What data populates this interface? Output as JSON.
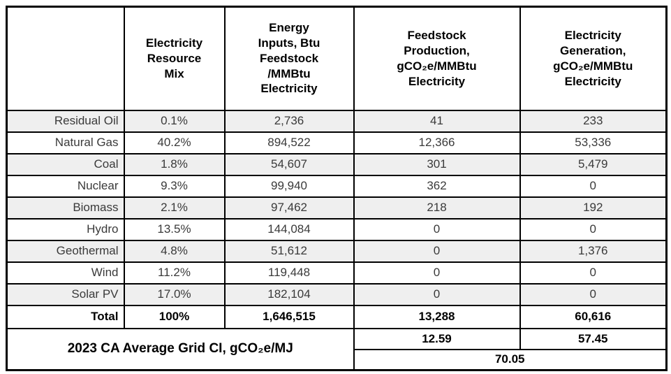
{
  "table": {
    "title_semantic": "2023 California average grid carbon intensity table",
    "columns": {
      "resource": "",
      "mix": "Electricity\nResource\nMix",
      "energy_inputs": "Energy\nInputs, Btu\nFeedstock\n/MMBtu\nElectricity",
      "feedstock_production": "Feedstock\nProduction,\ngCO₂e/MMBtu\nElectricity",
      "electricity_generation": "Electricity\nGeneration,\ngCO₂e/MMBtu\nElectricity"
    },
    "rows": [
      {
        "label": "Residual Oil",
        "mix": "0.1%",
        "energy_inputs": "2,736",
        "feedstock_production": "41",
        "electricity_generation": "233"
      },
      {
        "label": "Natural Gas",
        "mix": "40.2%",
        "energy_inputs": "894,522",
        "feedstock_production": "12,366",
        "electricity_generation": "53,336"
      },
      {
        "label": "Coal",
        "mix": "1.8%",
        "energy_inputs": "54,607",
        "feedstock_production": "301",
        "electricity_generation": "5,479"
      },
      {
        "label": "Nuclear",
        "mix": "9.3%",
        "energy_inputs": "99,940",
        "feedstock_production": "362",
        "electricity_generation": "0"
      },
      {
        "label": "Biomass",
        "mix": "2.1%",
        "energy_inputs": "97,462",
        "feedstock_production": "218",
        "electricity_generation": "192"
      },
      {
        "label": "Hydro",
        "mix": "13.5%",
        "energy_inputs": "144,084",
        "feedstock_production": "0",
        "electricity_generation": "0"
      },
      {
        "label": "Geothermal",
        "mix": "4.8%",
        "energy_inputs": "51,612",
        "feedstock_production": "0",
        "electricity_generation": "1,376"
      },
      {
        "label": "Wind",
        "mix": "11.2%",
        "energy_inputs": "119,448",
        "feedstock_production": "0",
        "electricity_generation": "0"
      },
      {
        "label": "Solar PV",
        "mix": "17.0%",
        "energy_inputs": "182,104",
        "feedstock_production": "0",
        "electricity_generation": "0"
      }
    ],
    "total": {
      "label": "Total",
      "mix": "100%",
      "energy_inputs": "1,646,515",
      "feedstock_production": "13,288",
      "electricity_generation": "60,616"
    },
    "summary": {
      "label": "2023 CA Average Grid CI, gCO₂e/MJ",
      "feedstock_ci": "12.59",
      "generation_ci": "57.45",
      "combined_ci": "70.05"
    },
    "colors": {
      "row_shade": "#efefef",
      "border": "#000000",
      "body_text": "#3a3a3a",
      "bold_text": "#000000",
      "background": "#ffffff"
    }
  }
}
